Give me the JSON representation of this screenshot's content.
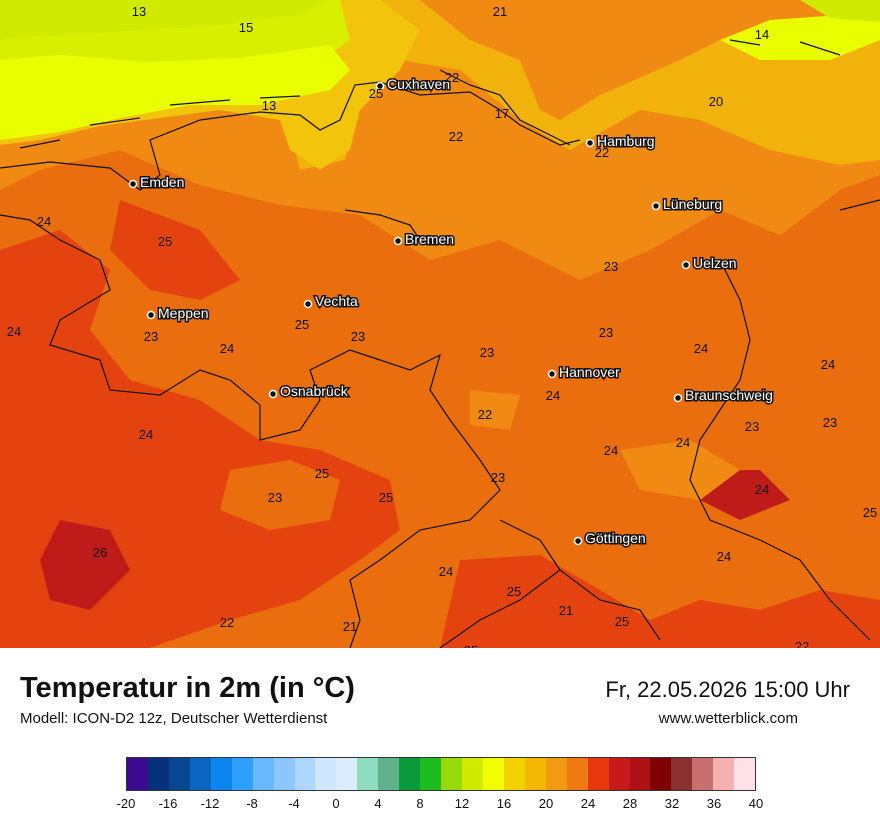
{
  "title": "Temperatur in 2m (in °C)",
  "model": "Modell: ICON-D2 12z, Deutscher Wetterdienst",
  "datetime": "Fr, 22.05.2026 15:00 Uhr",
  "website": "www.wetterblick.com",
  "colors": {
    "t13": "#e9ff00",
    "t17": "#f2c40c",
    "t21": "#f08a12",
    "t23": "#ea6e0e",
    "t25": "#e4430f",
    "t27": "#bf1b18",
    "t29": "#a6111b"
  },
  "cities": [
    {
      "name": "Cuxhaven"
    },
    {
      "name": "Hamburg"
    },
    {
      "name": "Emden"
    },
    {
      "name": "Lüneburg"
    },
    {
      "name": "Bremen"
    },
    {
      "name": "Uelzen"
    },
    {
      "name": "Vechta"
    },
    {
      "name": "Meppen"
    },
    {
      "name": "Hannover"
    },
    {
      "name": "Osnabrück"
    },
    {
      "name": "Braunschweig"
    },
    {
      "name": "Göttingen"
    }
  ],
  "temperature_labels": [
    "13",
    "15",
    "21",
    "14",
    "22",
    "25",
    "13",
    "17",
    "20",
    "22",
    "22",
    "24",
    "25",
    "23",
    "23",
    "24",
    "24",
    "25",
    "23",
    "23",
    "24",
    "23",
    "24",
    "24",
    "22",
    "24",
    "24",
    "23",
    "23",
    "24",
    "25",
    "23",
    "25",
    "23",
    "24",
    "24",
    "25",
    "26",
    "24",
    "25",
    "21",
    "25",
    "22",
    "21",
    "25",
    "22"
  ],
  "legend": {
    "colors": [
      "#3b0a8f",
      "#06307a",
      "#07478f",
      "#0a64c1",
      "#0a86ee",
      "#2da0ff",
      "#6ab8ff",
      "#8cc6ff",
      "#add7ff",
      "#cfe6ff",
      "#dcecff",
      "#8fdcbf",
      "#5fb28b",
      "#0a9a3b",
      "#1cbd1e",
      "#96da0c",
      "#d0ea00",
      "#f2ff00",
      "#f2d200",
      "#f2b700",
      "#f29a12",
      "#f07a12",
      "#e8380e",
      "#c61a1b",
      "#ad1116",
      "#800000",
      "#8a3030",
      "#c87070",
      "#f7b0b0",
      "#ffe0e8"
    ],
    "ticks": [
      "-20",
      "-16",
      "-12",
      "-8",
      "-4",
      "0",
      "4",
      "8",
      "12",
      "16",
      "20",
      "24",
      "28",
      "32",
      "36",
      "40"
    ]
  }
}
